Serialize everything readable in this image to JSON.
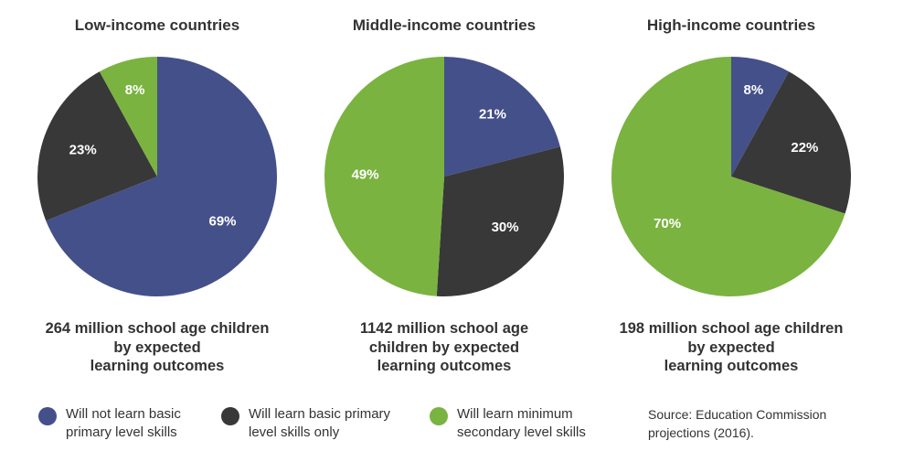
{
  "colors": {
    "not_basic": "#44508a",
    "basic_only": "#383838",
    "minimum_secondary": "#7ab340"
  },
  "chart_data": [
    {
      "type": "pie",
      "title": "Low-income countries",
      "caption": [
        "264 million school age children",
        "by expected",
        "learning outcomes"
      ],
      "slices": [
        {
          "label": "69%",
          "value": 69,
          "color_key": "not_basic"
        },
        {
          "label": "23%",
          "value": 23,
          "color_key": "basic_only"
        },
        {
          "label": "8%",
          "value": 8,
          "color_key": "minimum_secondary"
        }
      ]
    },
    {
      "type": "pie",
      "title": "Middle-income countries",
      "caption": [
        "1142 million school age",
        "children by expected",
        "learning outcomes"
      ],
      "slices": [
        {
          "label": "21%",
          "value": 21,
          "color_key": "not_basic"
        },
        {
          "label": "30%",
          "value": 30,
          "color_key": "basic_only"
        },
        {
          "label": "49%",
          "value": 49,
          "color_key": "minimum_secondary"
        }
      ]
    },
    {
      "type": "pie",
      "title": "High-income countries",
      "caption": [
        "198 million school age children",
        "by expected",
        "learning outcomes"
      ],
      "slices": [
        {
          "label": "8%",
          "value": 8,
          "color_key": "not_basic"
        },
        {
          "label": "22%",
          "value": 22,
          "color_key": "basic_only"
        },
        {
          "label": "70%",
          "value": 70,
          "color_key": "minimum_secondary"
        }
      ]
    }
  ],
  "legend": [
    {
      "color_key": "not_basic",
      "lines": [
        "Will not learn basic",
        "primary level skills"
      ]
    },
    {
      "color_key": "basic_only",
      "lines": [
        "Will learn basic primary",
        "level skills only"
      ]
    },
    {
      "color_key": "minimum_secondary",
      "lines": [
        "Will learn minimum",
        "secondary level skills"
      ]
    }
  ],
  "source": [
    "Source: Education Commission",
    "projections (2016)."
  ]
}
